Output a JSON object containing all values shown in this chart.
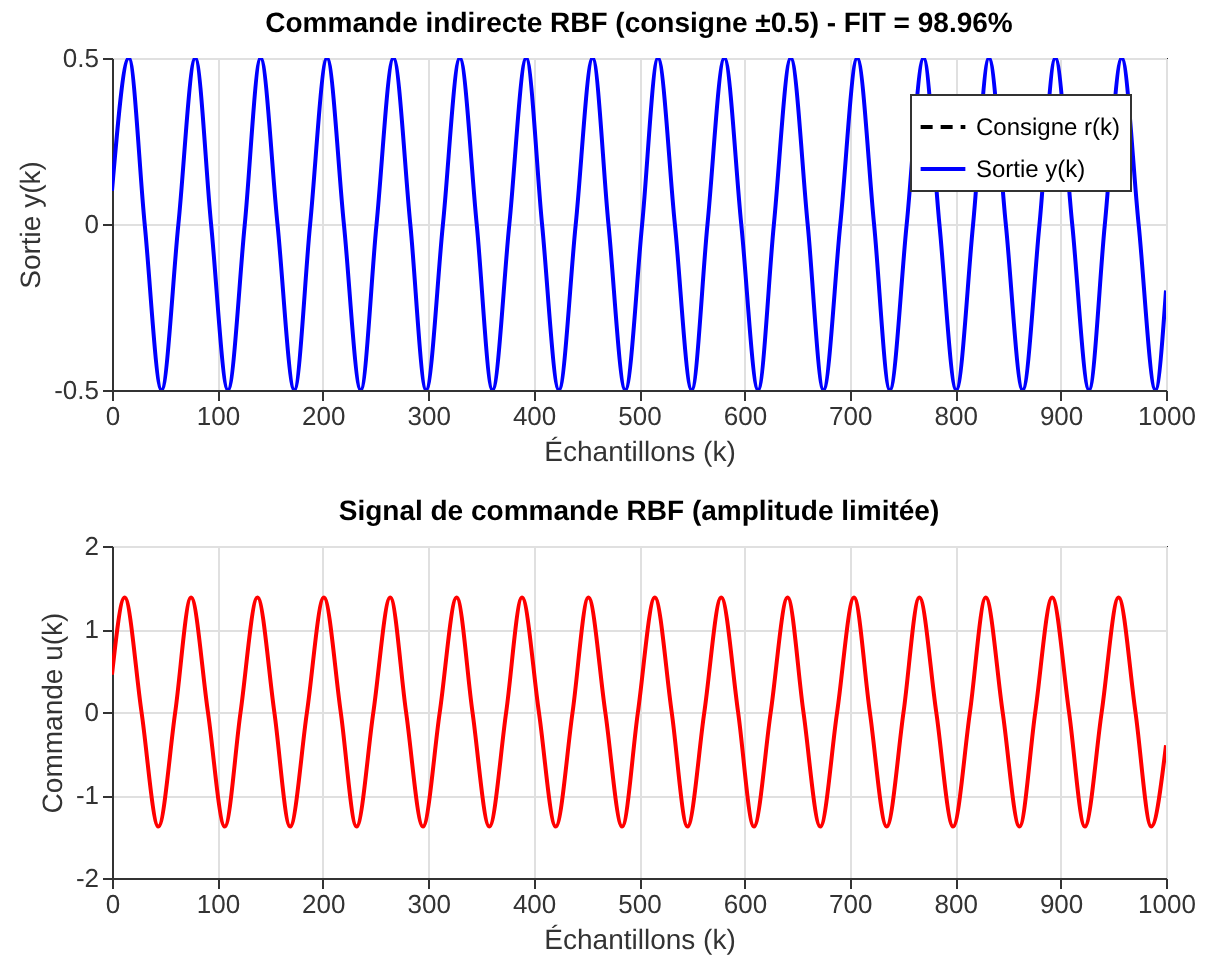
{
  "chart_data": [
    {
      "type": "line",
      "title": "Commande indirecte RBF (consigne ±0.5) - FIT = 98.96%",
      "xlabel": "Échantillons (k)",
      "ylabel": "Sortie y(k)",
      "xlim": [
        0,
        1000
      ],
      "xticks": [
        0,
        100,
        200,
        300,
        400,
        500,
        600,
        700,
        800,
        900,
        1000
      ],
      "ylim": [
        -0.5,
        0.5
      ],
      "yticks": [
        -0.5,
        0,
        0.5
      ],
      "grid": true,
      "legend": "top right",
      "series": [
        {
          "name": "Consigne r(k)",
          "color": "#000000",
          "line_style": "dashed",
          "values": [
            null
          ]
        },
        {
          "name": "Sortie y(k)",
          "color": "#0000ff",
          "line_style": "solid",
          "x": [
            0,
            16,
            31,
            47,
            63,
            79,
            94,
            110,
            126,
            141,
            157,
            173,
            188,
            204,
            220,
            236,
            251,
            267,
            283,
            298,
            314,
            330,
            346,
            361,
            377,
            393,
            408,
            424,
            440,
            456,
            471,
            487,
            503,
            518,
            534,
            550,
            565,
            581,
            597,
            613,
            628,
            644,
            660,
            675,
            691,
            707,
            723,
            738,
            754,
            770,
            785,
            801,
            817,
            832,
            848,
            864,
            880,
            895,
            911,
            927,
            942,
            958,
            974,
            990,
            1000
          ],
          "values": [
            0.1,
            0.5,
            0,
            -0.5,
            0,
            0.5,
            0,
            -0.5,
            0,
            0.5,
            0,
            -0.5,
            0,
            0.5,
            0,
            -0.5,
            0,
            0.5,
            0,
            -0.5,
            0,
            0.5,
            0,
            -0.5,
            0,
            0.5,
            0,
            -0.5,
            0,
            0.5,
            0,
            -0.5,
            0,
            0.5,
            0,
            -0.5,
            0,
            0.5,
            0,
            -0.5,
            0,
            0.5,
            0,
            -0.5,
            0,
            0.5,
            0,
            -0.5,
            0,
            0.5,
            0,
            -0.5,
            0,
            0.5,
            0,
            -0.5,
            0,
            0.5,
            0,
            -0.5,
            0,
            0.5,
            0,
            -0.5,
            -0.2
          ]
        }
      ]
    },
    {
      "type": "line",
      "title": "Signal de commande RBF (amplitude limitée)",
      "xlabel": "Échantillons (k)",
      "ylabel": "Commande u(k)",
      "xlim": [
        0,
        1000
      ],
      "xticks": [
        0,
        100,
        200,
        300,
        400,
        500,
        600,
        700,
        800,
        900,
        1000
      ],
      "ylim": [
        -2,
        2
      ],
      "yticks": [
        -2,
        -1,
        0,
        1,
        2
      ],
      "grid": true,
      "series": [
        {
          "color": "#ff0000",
          "x": [
            0,
            12,
            28,
            44,
            60,
            75,
            91,
            107,
            122,
            138,
            154,
            169,
            185,
            201,
            217,
            232,
            248,
            264,
            279,
            295,
            311,
            327,
            342,
            358,
            374,
            389,
            405,
            421,
            437,
            452,
            468,
            484,
            499,
            515,
            531,
            546,
            562,
            578,
            594,
            609,
            625,
            641,
            656,
            672,
            688,
            704,
            719,
            735,
            751,
            766,
            782,
            798,
            814,
            829,
            845,
            861,
            876,
            892,
            908,
            923,
            939,
            955,
            971,
            986,
            1000
          ],
          "values": [
            0.45,
            1.38,
            0,
            -1.38,
            0,
            1.38,
            0,
            -1.38,
            0,
            1.38,
            0,
            -1.38,
            0,
            1.38,
            0,
            -1.38,
            0,
            1.38,
            0,
            -1.38,
            0,
            1.38,
            0,
            -1.38,
            0,
            1.38,
            0,
            -1.38,
            0,
            1.38,
            0,
            -1.38,
            0,
            1.38,
            0,
            -1.38,
            0,
            1.38,
            0,
            -1.38,
            0,
            1.38,
            0,
            -1.38,
            0,
            1.38,
            0,
            -1.38,
            0,
            1.38,
            0,
            -1.38,
            0,
            1.38,
            0,
            -1.38,
            0,
            1.38,
            0,
            -1.38,
            0,
            1.38,
            0,
            -1.38,
            -0.4
          ]
        }
      ]
    }
  ]
}
